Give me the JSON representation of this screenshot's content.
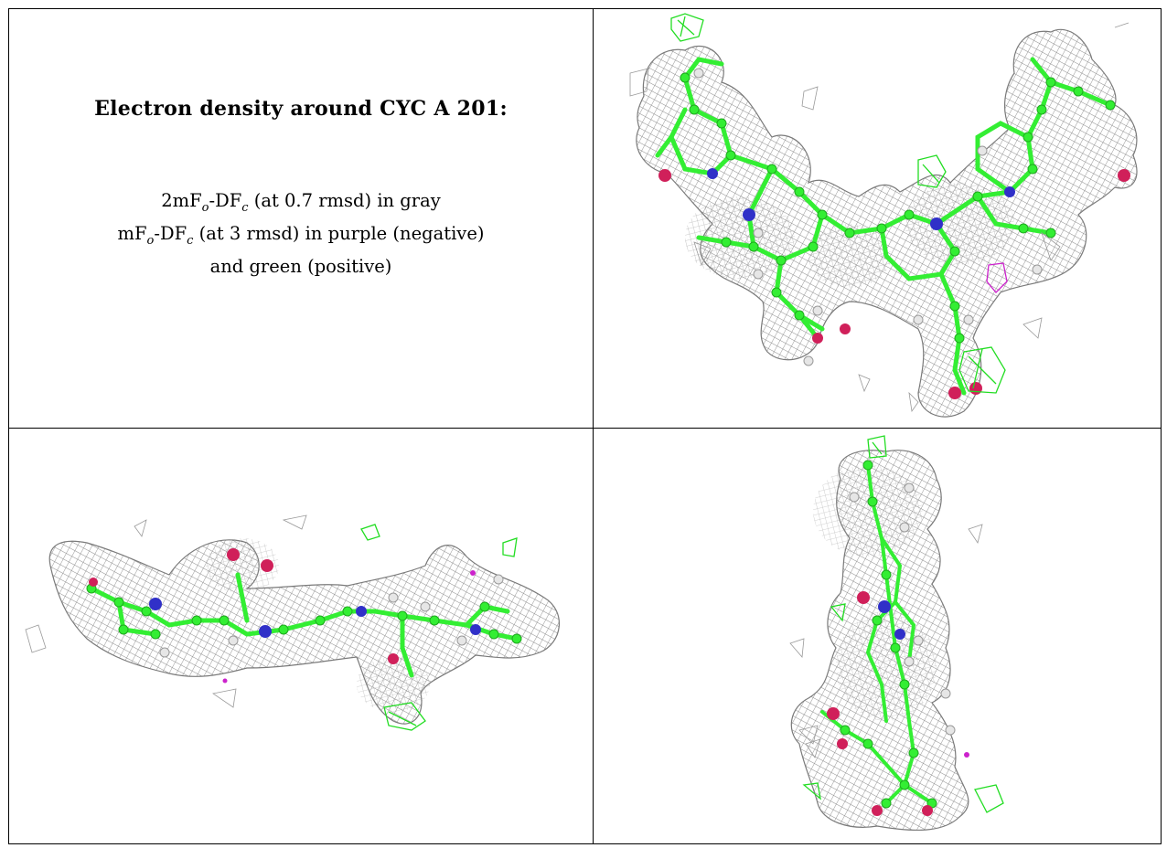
{
  "title": "Electron density around CYC A 201:",
  "legend": {
    "line1_prefix": "2mF",
    "sub_o": "o",
    "mid": "-DF",
    "sub_c": "c",
    "line1_suffix": " (at 0.7 rmsd) in gray",
    "line2_prefix": "mF",
    "line2_suffix": " (at 3 rmsd) in purple (negative)",
    "line3": "and green (positive)"
  },
  "colors": {
    "mesh_gray": "#8c8c8c",
    "carbon_green": "#33ee33",
    "nitrogen_blue": "#3030c8",
    "oxygen_red": "#d0205a",
    "negative_purple": "#cc22cc",
    "positive_green": "#22dd22",
    "hydrogen_white": "#e6e6e6"
  },
  "panels": [
    {
      "view": "front"
    },
    {
      "view": "side"
    },
    {
      "view": "edge"
    }
  ]
}
